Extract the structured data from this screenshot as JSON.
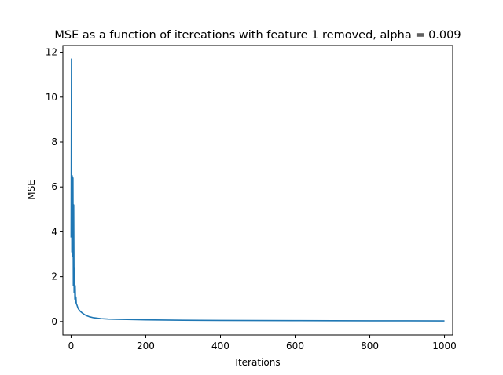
{
  "chart_data": {
    "type": "line",
    "title": "MSE as a function of itereations with feature 1 removed, alpha = 0.009",
    "xlabel": "Iterations",
    "ylabel": "MSE",
    "xlim": [
      -22,
      1022
    ],
    "ylim": [
      -0.6,
      12.3
    ],
    "xticks": [
      0,
      200,
      400,
      600,
      800,
      1000
    ],
    "yticks": [
      0,
      2,
      4,
      6,
      8,
      10,
      12
    ],
    "grid": false,
    "series_color": "#1f77b4",
    "series": [
      {
        "x": [
          0,
          1,
          2,
          3,
          4,
          5,
          6,
          7,
          8,
          9,
          10,
          11,
          12,
          13,
          14,
          16,
          18,
          20,
          25,
          30,
          35,
          40,
          50,
          60,
          70,
          80,
          100,
          120,
          150,
          200,
          250,
          300,
          400,
          500,
          600,
          700,
          800,
          900,
          1000
        ],
        "y": [
          3.75,
          11.7,
          3.1,
          6.5,
          2.9,
          6.4,
          1.6,
          5.2,
          1.3,
          2.4,
          1.0,
          1.6,
          0.85,
          1.1,
          0.8,
          0.72,
          0.62,
          0.55,
          0.45,
          0.38,
          0.32,
          0.27,
          0.21,
          0.17,
          0.15,
          0.13,
          0.11,
          0.1,
          0.09,
          0.075,
          0.065,
          0.058,
          0.05,
          0.045,
          0.04,
          0.036,
          0.033,
          0.03,
          0.028
        ]
      }
    ]
  }
}
